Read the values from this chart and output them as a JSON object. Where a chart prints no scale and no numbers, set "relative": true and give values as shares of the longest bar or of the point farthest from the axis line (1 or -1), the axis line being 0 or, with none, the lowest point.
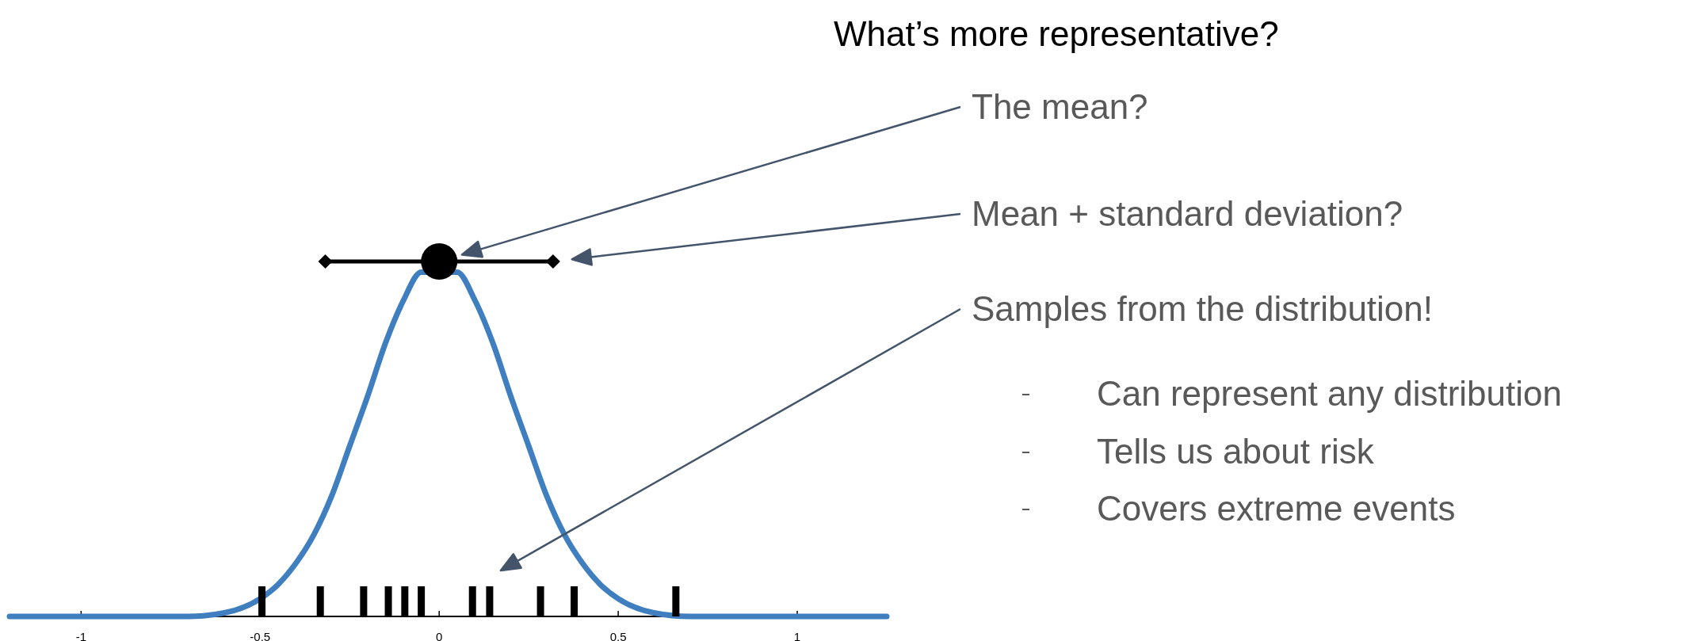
{
  "chart_data": {
    "type": "line",
    "title": "What’s more representative?",
    "relative": true,
    "xlim": [
      -1.2,
      1.25
    ],
    "xticks": [
      -1,
      -0.5,
      0,
      0.5,
      1
    ],
    "series": [
      {
        "color": "#3f7fbf",
        "x": [
          -1.2,
          -0.8,
          -0.7,
          -0.6,
          -0.5,
          -0.45,
          -0.4,
          -0.35,
          -0.3,
          -0.25,
          -0.2,
          -0.15,
          -0.1,
          -0.05,
          0,
          0.05,
          0.1,
          0.15,
          0.2,
          0.25,
          0.3,
          0.35,
          0.4,
          0.45,
          0.5,
          0.6,
          0.7,
          0.8,
          1.25
        ],
        "values": [
          0,
          0,
          0,
          0.01,
          0.05,
          0.09,
          0.15,
          0.23,
          0.34,
          0.48,
          0.62,
          0.77,
          0.89,
          0.97,
          null,
          0.97,
          0.89,
          0.77,
          0.62,
          0.48,
          0.34,
          0.23,
          0.15,
          0.09,
          0.05,
          0.01,
          0,
          0,
          0
        ]
      },
      {
        "type": "scatter",
        "color": "#000000",
        "marker": "circle",
        "x": [
          0
        ],
        "values": [
          1
        ],
        "xerrors": [
          0.318
        ]
      },
      {
        "type": "bar",
        "color": "#000000",
        "x": [
          -0.495,
          -0.332,
          -0.211,
          -0.142,
          -0.096,
          -0.05,
          0.093,
          0.141,
          0.283,
          0.377,
          0.661
        ],
        "values": [
          0.085,
          0.085,
          0.085,
          0.085,
          0.085,
          0.085,
          0.085,
          0.085,
          0.085,
          0.085,
          0.085
        ]
      }
    ],
    "annotations": [
      "The mean?",
      "Mean + standard deviation?",
      "Samples from the distribution!",
      "Can represent any distribution",
      "Tells us about risk",
      "Covers extreme events"
    ]
  }
}
